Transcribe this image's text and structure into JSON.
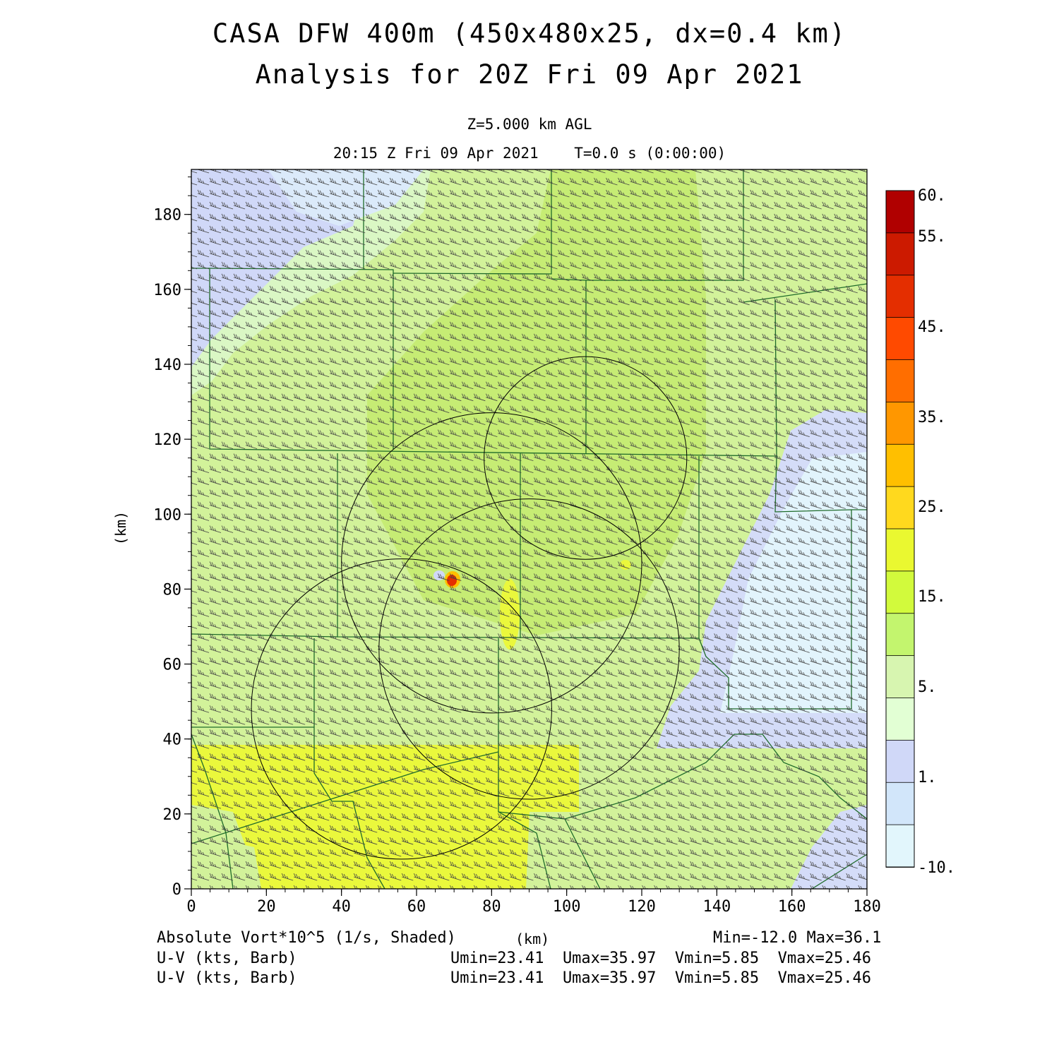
{
  "header": {
    "title_line1": "CASA DFW 400m (450x480x25, dx=0.4 km)",
    "title_line2": "Analysis for 20Z Fri 09 Apr 2021",
    "level": "Z=5.000 km AGL",
    "valid_time": "20:15 Z Fri 09 Apr 2021    T=0.0 s (0:00:00)"
  },
  "chart_data": {
    "type": "heatmap",
    "xlabel": "(km)",
    "ylabel": "(km)",
    "xlim": [
      0,
      180
    ],
    "ylim": [
      0,
      192
    ],
    "x_ticks": [
      "0",
      "20",
      "40",
      "60",
      "80",
      "100",
      "120",
      "140",
      "160",
      "180"
    ],
    "y_ticks": [
      "0",
      "20",
      "40",
      "60",
      "80",
      "100",
      "120",
      "140",
      "160",
      "180"
    ],
    "colorbar": {
      "labels": [
        "60.",
        "55.",
        "45.",
        "35.",
        "25.",
        "15.",
        "5.",
        "1.",
        "-10."
      ],
      "label_values": [
        60,
        55,
        45,
        35,
        25,
        15,
        5,
        1,
        -10
      ],
      "colors": [
        "#b00000",
        "#cc1a00",
        "#e42e00",
        "#ff4a00",
        "#ff6e00",
        "#ff9700",
        "#ffbf00",
        "#ffd91e",
        "#eaf830",
        "#d2fa3c",
        "#c3f56e",
        "#d7f5b0",
        "#e2ffd4",
        "#d0d8f8",
        "#d2e6fa",
        "#e2f6fc"
      ]
    },
    "range_rings_km": [
      {
        "cx": 105,
        "cy": 115,
        "r": 27
      },
      {
        "cx": 80,
        "cy": 87,
        "r": 40
      },
      {
        "cx": 90,
        "cy": 64,
        "r": 40
      },
      {
        "cx": 56,
        "cy": 48,
        "r": 40
      }
    ],
    "shaded_regions": [
      {
        "name": "upper-left weak vorticity",
        "fill": "#d0d8f8"
      },
      {
        "name": "east weak vorticity",
        "fill": "#d2e6fa"
      },
      {
        "name": "southern band",
        "fill": "#eaf830"
      },
      {
        "name": "vortex max near x=69 y=82",
        "fill": "#e42e00"
      }
    ],
    "barbs": {
      "spacing_km": 3.2,
      "description": "westerly-southwesterly wind barbs"
    },
    "field_label": "Absolute Vort*10^5 (1/s, Shaded)",
    "min_max": "Min=-12.0 Max=36.1"
  },
  "footer": {
    "field_label": "Absolute Vort*10^5 (1/s, Shaded)",
    "x_unit": "(km)",
    "min_max": "Min=-12.0 Max=36.1",
    "barb_label_1": "U-V (kts, Barb)",
    "barb_stats_1": "Umin=23.41  Umax=35.97  Vmin=5.85  Vmax=25.46",
    "barb_label_2": "U-V (kts, Barb)",
    "barb_stats_2": "Umin=23.41  Umax=35.97  Vmin=5.85  Vmax=25.46"
  }
}
